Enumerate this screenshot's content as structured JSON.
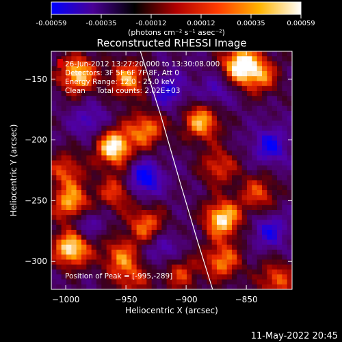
{
  "colorbar": {
    "ticks": [
      "-0.00059",
      "-0.00035",
      "-0.00012",
      "0.00012",
      "0.00035",
      "0.00059"
    ],
    "unit_label": "(photons cm⁻² s⁻¹ asec⁻²)",
    "colors": [
      "#0000ff",
      "#4a0095",
      "#000000",
      "#b00000",
      "#ff3c00",
      "#ffb400",
      "#ffffff"
    ]
  },
  "chart_data": {
    "type": "heatmap",
    "title": "Reconstructed RHESSI Image",
    "xlabel": "Heliocentric X (arcsec)",
    "ylabel": "Heliocentric Y (arcsec)",
    "xlim": [
      -1012,
      -812
    ],
    "ylim": [
      -323,
      -127
    ],
    "xticks": [
      -1000,
      -950,
      -900,
      -850
    ],
    "xtick_labels": [
      "−1000",
      "−950",
      "−900",
      "−850"
    ],
    "yticks": [
      -300,
      -250,
      -200,
      -150
    ],
    "ytick_labels": [
      "−300",
      "−250",
      "−200",
      "−150"
    ],
    "value_range": [
      -0.00059,
      0.00059
    ],
    "limb_curve": [
      [
        -938,
        -127
      ],
      [
        -921,
        -180
      ],
      [
        -905,
        -235
      ],
      [
        -890,
        -285
      ],
      [
        -878,
        -323
      ]
    ],
    "peak": {
      "x": -995,
      "y": -289
    },
    "hotspots": [
      {
        "x": -990,
        "y": -146,
        "a": 0.9
      },
      {
        "x": -948,
        "y": -150,
        "a": 0.75
      },
      {
        "x": -855,
        "y": -138,
        "a": 1.0
      },
      {
        "x": -838,
        "y": -147,
        "a": 0.6
      },
      {
        "x": -960,
        "y": -206,
        "a": 1.0
      },
      {
        "x": -933,
        "y": -191,
        "a": 0.7
      },
      {
        "x": -1000,
        "y": -225,
        "a": 0.55
      },
      {
        "x": -887,
        "y": -185,
        "a": 0.8
      },
      {
        "x": -873,
        "y": -222,
        "a": 0.55
      },
      {
        "x": -995,
        "y": -253,
        "a": 0.85
      },
      {
        "x": -958,
        "y": -243,
        "a": 0.55
      },
      {
        "x": -933,
        "y": -270,
        "a": 0.65
      },
      {
        "x": -870,
        "y": -265,
        "a": 0.95
      },
      {
        "x": -840,
        "y": -244,
        "a": 0.55
      },
      {
        "x": -995,
        "y": -289,
        "a": 1.0
      },
      {
        "x": -955,
        "y": -296,
        "a": 0.6
      },
      {
        "x": -870,
        "y": -300,
        "a": 0.7
      },
      {
        "x": -825,
        "y": -315,
        "a": 0.6
      },
      {
        "x": -905,
        "y": -310,
        "a": 0.5
      },
      {
        "x": -945,
        "y": -315,
        "a": 0.45
      }
    ],
    "coldspots": [
      {
        "x": -935,
        "y": -232,
        "a": 0.9
      },
      {
        "x": -985,
        "y": -268,
        "a": 0.6
      },
      {
        "x": -830,
        "y": -205,
        "a": 0.7
      },
      {
        "x": -915,
        "y": -160,
        "a": 0.6
      },
      {
        "x": -830,
        "y": -275,
        "a": 0.6
      },
      {
        "x": -920,
        "y": -290,
        "a": 0.5
      },
      {
        "x": -980,
        "y": -185,
        "a": 0.5
      },
      {
        "x": -875,
        "y": -160,
        "a": 0.45
      }
    ]
  },
  "annotation": {
    "time_range": "26-Jun-2012 13:27:20.000 to 13:30:08.000",
    "detectors": "Detectors: 3F 5F 6F 7F 8F, Att 0",
    "energy": "Energy Range: 12.0 - 25.0 keV",
    "clean": "Clean     Total counts: 2.02E+03",
    "peak_label": "Position of Peak = [-995,-289]"
  },
  "footer": {
    "timestamp": "11-May-2022 20:45"
  }
}
